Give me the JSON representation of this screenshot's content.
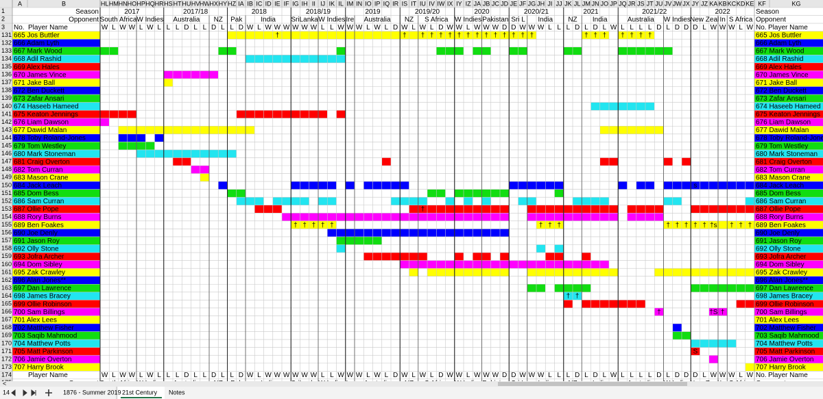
{
  "column_letters": [
    "A",
    "B",
    "HL",
    "HM",
    "HN",
    "HO",
    "HP",
    "HQ",
    "HR",
    "HS",
    "HT",
    "HU",
    "HV",
    "HW",
    "HX",
    "HY",
    "HZ",
    "IA",
    "IB",
    "IC",
    "ID",
    "IE",
    "IF",
    "IG",
    "IH",
    "II",
    "IJ",
    "IK",
    "IL",
    "IM",
    "IN",
    "IO",
    "IP",
    "IQ",
    "IR",
    "IS",
    "IT",
    "IU",
    "IV",
    "IW",
    "IX",
    "IY",
    "IZ",
    "JA",
    "JB",
    "JC",
    "JD",
    "JE",
    "JF",
    "JG",
    "JH",
    "JI",
    "JJ",
    "JK",
    "JL",
    "JM",
    "JN",
    "JO",
    "JP",
    "JQ",
    "JR",
    "JS",
    "JT",
    "JU",
    "JV",
    "JW",
    "JX",
    "JY",
    "JZ",
    "KA",
    "KB",
    "KC",
    "KD",
    "KE",
    "KF",
    "KG"
  ],
  "row_numbers": [
    1,
    2,
    3,
    131,
    132,
    133,
    134,
    135,
    136,
    137,
    138,
    139,
    140,
    141,
    142,
    143,
    144,
    145,
    146,
    147,
    148,
    149,
    150,
    151,
    152,
    153,
    154,
    155,
    156,
    157,
    158,
    159,
    160,
    161,
    162,
    163,
    164,
    165,
    166,
    167,
    168,
    169,
    170,
    171,
    172,
    173,
    174,
    175
  ],
  "header": {
    "season": "Season",
    "opponent": "Opponent",
    "no": "No.",
    "player_name": "Player Name"
  },
  "seasons": [
    "2017",
    "2017/18",
    "2018",
    "2018/19",
    "2019",
    "2019/20",
    "2020",
    "2020/21",
    "2021",
    "2021/22",
    "2022"
  ],
  "opponents": [
    "South Africa",
    "W Indies",
    "Australia",
    "NZ",
    "Pak",
    "India",
    "SriLanka",
    "W Indies",
    "Ire",
    "Australia",
    "NZ",
    "S Africa",
    "W Indies",
    "Pakistan",
    "Sri L",
    "India",
    "NZ",
    "India",
    "Australia",
    "W Indies",
    "New Zeal",
    "In",
    "S Africa"
  ],
  "results": [
    "W",
    "L",
    "W",
    "W",
    "L",
    "W",
    "L",
    "L",
    "L",
    "D",
    "L",
    "L",
    "D",
    "L",
    "L",
    "D",
    "W",
    "L",
    "W",
    "W",
    "W",
    "W",
    "W",
    "W",
    "L",
    "L",
    "W",
    "W",
    "W",
    "L",
    "W",
    "L",
    "D",
    "W",
    "L",
    "W",
    "L",
    "D",
    "W",
    "W",
    "L",
    "W",
    "W",
    "W",
    "D",
    "D",
    "W",
    "W",
    "W",
    "L",
    "L",
    "L",
    "D",
    "L",
    "D",
    "L",
    "W",
    "L",
    "L",
    "L",
    "L",
    "D",
    "L",
    "D",
    "D",
    "D",
    "L",
    "W",
    "W",
    "W",
    "L",
    "W"
  ],
  "players": [
    {
      "label": "665 Jos Buttler",
      "color": "#ffff00",
      "notes": [
        "†",
        "†",
        "†",
        "†",
        "†",
        "†",
        "†",
        "†",
        "†",
        "†",
        "†",
        "†",
        "†",
        "†",
        "†",
        "†",
        "†",
        "†",
        "†",
        "†",
        "†",
        "†"
      ]
    },
    {
      "label": "666 Adam Lyth",
      "color": "#0000ff"
    },
    {
      "label": "667 Mark Wood",
      "color": "#11dd11"
    },
    {
      "label": "668 Adil Rashid",
      "color": "#22e5f0"
    },
    {
      "label": "669 Alex Hales",
      "color": "#ff0000"
    },
    {
      "label": "670 James Vince",
      "color": "#ff00ff"
    },
    {
      "label": "671 Jake Ball",
      "color": "#ffff00"
    },
    {
      "label": "672 Ben Duckett",
      "color": "#0000ff"
    },
    {
      "label": "673 Zafar Ansari",
      "color": "#11dd11"
    },
    {
      "label": "674 Haseeb Hameed",
      "color": "#22e5f0"
    },
    {
      "label": "675 Keaton Jennings",
      "color": "#ff0000"
    },
    {
      "label": "676 Liam Dawson",
      "color": "#ff00ff"
    },
    {
      "label": "677 Dawid Malan",
      "color": "#ffff00"
    },
    {
      "label": "678 Toby Roland-Jones",
      "color": "#0000ff"
    },
    {
      "label": "679 Tom Westley",
      "color": "#11dd11"
    },
    {
      "label": "680 Mark Stoneman",
      "color": "#22e5f0"
    },
    {
      "label": "681 Craig Overton",
      "color": "#ff0000"
    },
    {
      "label": "682 Tom Curran",
      "color": "#ff00ff"
    },
    {
      "label": "683 Mason Crane",
      "color": "#ffff00"
    },
    {
      "label": "684 Jack Leach",
      "color": "#0000ff",
      "notes": [
        "s"
      ]
    },
    {
      "label": "685 Dom Bess",
      "color": "#11dd11"
    },
    {
      "label": "686 Sam Curran",
      "color": "#22e5f0"
    },
    {
      "label": "687 Ollie Pope",
      "color": "#ff0000",
      "notes": [
        "†"
      ]
    },
    {
      "label": "688 Rory Burns",
      "color": "#ff00ff"
    },
    {
      "label": "689 Ben Foakes",
      "color": "#ffff00",
      "notes": [
        "†",
        "†",
        "†",
        "†",
        "†",
        "†",
        "†",
        "†",
        "†",
        "†",
        "†",
        "†",
        "†",
        "†s",
        "†",
        "†",
        "†"
      ]
    },
    {
      "label": "690 Joe Denly",
      "color": "#0000ff"
    },
    {
      "label": "691 Jason Roy",
      "color": "#11dd11"
    },
    {
      "label": "692 Olly Stone",
      "color": "#22e5f0"
    },
    {
      "label": "693 Jofra Archer",
      "color": "#ff0000"
    },
    {
      "label": "694 Dom Sibley",
      "color": "#ff00ff"
    },
    {
      "label": "695 Zak Crawley",
      "color": "#ffff00"
    },
    {
      "label": "696 Alan Jones**",
      "color": "#0000ff"
    },
    {
      "label": "697 Dan Lawrence",
      "color": "#11dd11"
    },
    {
      "label": "698 James Bracey",
      "color": "#22e5f0",
      "notes": [
        "†",
        "†"
      ]
    },
    {
      "label": "699 Ollie Robinson",
      "color": "#ff0000"
    },
    {
      "label": "700 Sam Billings",
      "color": "#ff00ff",
      "notes": [
        "†",
        "†S",
        "†"
      ]
    },
    {
      "label": "701 Alex Lees",
      "color": "#ffff00"
    },
    {
      "label": "702 Matthew Fisher",
      "color": "#0000ff"
    },
    {
      "label": "703 Saqib Mahmood",
      "color": "#11dd11"
    },
    {
      "label": "704 Matthew Potts",
      "color": "#22e5f0"
    },
    {
      "label": "705 Matt Parkinson",
      "color": "#ff0000",
      "notes": [
        "S"
      ]
    },
    {
      "label": "706 Jamie Overton",
      "color": "#ff00ff"
    },
    {
      "label": "707 Harry Brook",
      "color": "#ffff00"
    }
  ],
  "tabs": [
    "1876 - Summer 2019",
    "21st Century",
    "Notes"
  ]
}
